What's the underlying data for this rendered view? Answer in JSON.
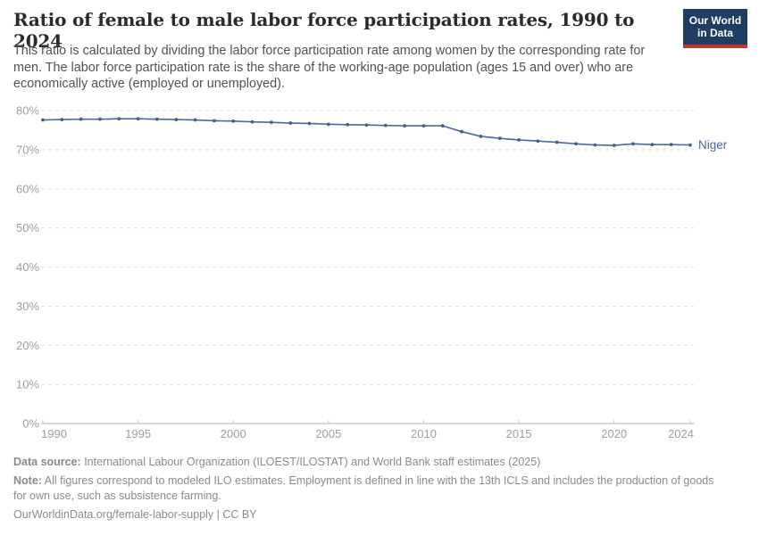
{
  "header": {
    "title": "Ratio of female to male labor force participation rates, 1990 to 2024",
    "subtitle": "This ratio is calculated by dividing the labor force participation rate among women by the corresponding rate for men. The labor force participation rate is the share of the working-age population (ages 15 and over) who are economically active (employed or unemployed).",
    "logo": {
      "line1": "Our World",
      "line2": "in Data",
      "bg_color": "#1d3d63",
      "accent_color": "#c0392b"
    }
  },
  "chart_data": {
    "type": "line",
    "title": "Ratio of female to male labor force participation rates, 1990 to 2024",
    "x": [
      1990,
      1991,
      1992,
      1993,
      1994,
      1995,
      1996,
      1997,
      1998,
      1999,
      2000,
      2001,
      2002,
      2003,
      2004,
      2005,
      2006,
      2007,
      2008,
      2009,
      2010,
      2011,
      2012,
      2013,
      2014,
      2015,
      2016,
      2017,
      2018,
      2019,
      2020,
      2021,
      2022,
      2023,
      2024
    ],
    "series": [
      {
        "name": "Niger",
        "color": "#4C6A9C",
        "marker_color": "#44608f",
        "values": [
          77.6,
          77.7,
          77.8,
          77.8,
          77.9,
          77.9,
          77.8,
          77.7,
          77.6,
          77.4,
          77.3,
          77.1,
          77.0,
          76.8,
          76.7,
          76.5,
          76.4,
          76.3,
          76.2,
          76.1,
          76.1,
          76.1,
          74.6,
          73.4,
          72.9,
          72.5,
          72.2,
          71.9,
          71.5,
          71.2,
          71.1,
          71.5,
          71.3,
          71.3,
          71.2
        ]
      }
    ],
    "xlabel": "",
    "ylabel": "",
    "ylim": [
      0,
      80
    ],
    "ytick_values": [
      0,
      10,
      20,
      30,
      40,
      50,
      60,
      70,
      80
    ],
    "ytick_labels": [
      "0%",
      "10%",
      "20%",
      "30%",
      "40%",
      "50%",
      "60%",
      "70%",
      "80%"
    ],
    "xtick_values": [
      1990,
      1995,
      2000,
      2005,
      2010,
      2015,
      2020,
      2024
    ],
    "xtick_labels": [
      "1990",
      "1995",
      "2000",
      "2005",
      "2010",
      "2015",
      "2020",
      "2024"
    ],
    "grid": "horizontal-dashed",
    "legend_position": "end-of-line-label",
    "colors": {
      "gridline": "#dedede",
      "axis_line": "#b0b0b0",
      "tick": "#c8c8c8",
      "axis_label": "#9e9e9e"
    }
  },
  "footer": {
    "data_source_label": "Data source:",
    "data_source_text": " International Labour Organization (ILOEST/ILOSTAT) and World Bank staff estimates (2025)",
    "note_label": "Note:",
    "note_text": " All figures correspond to modeled ILO estimates. Employment is defined in line with the 13th ICLS and includes the production of goods for own use, such as subsistence farming.",
    "link": "OurWorldinData.org/female-labor-supply",
    "license": " | CC BY"
  }
}
